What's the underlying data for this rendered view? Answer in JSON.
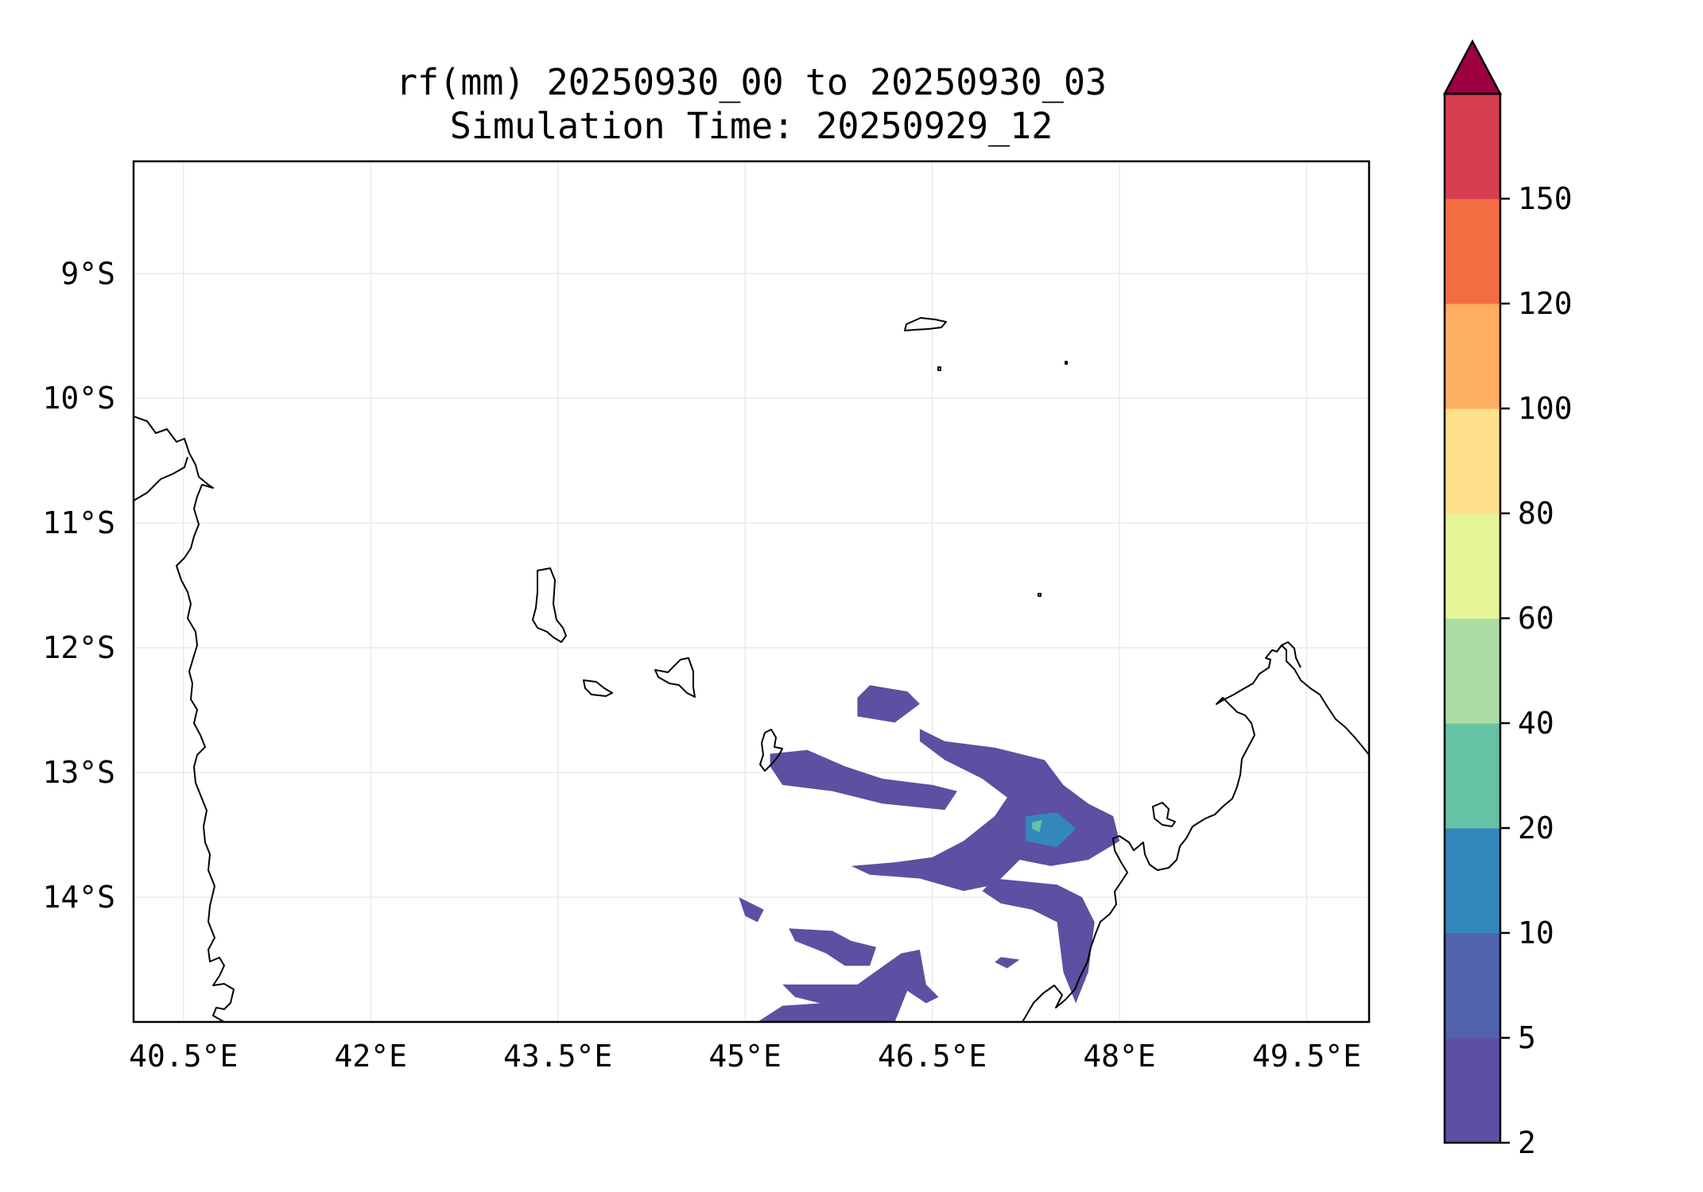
{
  "title": {
    "line1": "rf(mm) 20250930_00 to 20250930_03",
    "line2": "Simulation Time: 20250929_12"
  },
  "map": {
    "extent": {
      "lon_min": 40.1,
      "lon_max": 50.0,
      "lat_min": -15.0,
      "lat_max": -8.1
    },
    "x_ticks": [
      {
        "lon": 40.5,
        "label": "40.5°E"
      },
      {
        "lon": 42.0,
        "label": "42°E"
      },
      {
        "lon": 43.5,
        "label": "43.5°E"
      },
      {
        "lon": 45.0,
        "label": "45°E"
      },
      {
        "lon": 46.5,
        "label": "46.5°E"
      },
      {
        "lon": 48.0,
        "label": "48°E"
      },
      {
        "lon": 49.5,
        "label": "49.5°E"
      }
    ],
    "y_ticks": [
      {
        "lat": -9,
        "label": "9°S"
      },
      {
        "lat": -10,
        "label": "10°S"
      },
      {
        "lat": -11,
        "label": "11°S"
      },
      {
        "lat": -12,
        "label": "12°S"
      },
      {
        "lat": -13,
        "label": "13°S"
      },
      {
        "lat": -14,
        "label": "14°S"
      }
    ],
    "gridlines": true,
    "coastline_color": "#000000",
    "rain_polygons": [
      {
        "color": "#5e4fa2",
        "coords": [
          [
            46.0,
            -12.3
          ],
          [
            46.3,
            -12.35
          ],
          [
            46.4,
            -12.45
          ],
          [
            46.2,
            -12.6
          ],
          [
            45.9,
            -12.55
          ],
          [
            45.9,
            -12.4
          ]
        ]
      },
      {
        "color": "#5e4fa2",
        "coords": [
          [
            46.4,
            -12.65
          ],
          [
            46.6,
            -12.75
          ],
          [
            47.0,
            -12.8
          ],
          [
            47.4,
            -12.9
          ],
          [
            47.55,
            -13.1
          ],
          [
            47.75,
            -13.25
          ],
          [
            47.95,
            -13.35
          ],
          [
            48.0,
            -13.55
          ],
          [
            47.75,
            -13.7
          ],
          [
            47.45,
            -13.75
          ],
          [
            47.2,
            -13.7
          ],
          [
            47.0,
            -13.9
          ],
          [
            46.75,
            -13.95
          ],
          [
            46.4,
            -13.85
          ],
          [
            46.0,
            -13.82
          ],
          [
            45.85,
            -13.75
          ],
          [
            46.2,
            -13.72
          ],
          [
            46.5,
            -13.68
          ],
          [
            46.75,
            -13.55
          ],
          [
            47.0,
            -13.35
          ],
          [
            47.1,
            -13.2
          ],
          [
            46.9,
            -13.05
          ],
          [
            46.6,
            -12.9
          ],
          [
            46.4,
            -12.75
          ]
        ]
      },
      {
        "color": "#5e4fa2",
        "coords": [
          [
            45.2,
            -12.85
          ],
          [
            45.5,
            -12.82
          ],
          [
            45.8,
            -12.95
          ],
          [
            46.1,
            -13.05
          ],
          [
            46.5,
            -13.1
          ],
          [
            46.7,
            -13.15
          ],
          [
            46.6,
            -13.3
          ],
          [
            46.1,
            -13.25
          ],
          [
            45.7,
            -13.15
          ],
          [
            45.3,
            -13.1
          ],
          [
            45.2,
            -12.95
          ]
        ]
      },
      {
        "color": "#5e4fa2",
        "coords": [
          [
            47.0,
            -13.85
          ],
          [
            47.5,
            -13.9
          ],
          [
            47.7,
            -14.0
          ],
          [
            47.8,
            -14.2
          ],
          [
            47.75,
            -14.6
          ],
          [
            47.65,
            -14.85
          ],
          [
            47.55,
            -14.6
          ],
          [
            47.5,
            -14.2
          ],
          [
            47.3,
            -14.1
          ],
          [
            47.05,
            -14.05
          ],
          [
            46.9,
            -13.95
          ]
        ]
      },
      {
        "color": "#5e4fa2",
        "coords": [
          [
            44.95,
            -14.0
          ],
          [
            45.15,
            -14.1
          ],
          [
            45.1,
            -14.2
          ],
          [
            45.0,
            -14.15
          ]
        ]
      },
      {
        "color": "#5e4fa2",
        "coords": [
          [
            45.35,
            -14.25
          ],
          [
            45.7,
            -14.27
          ],
          [
            45.85,
            -14.35
          ],
          [
            46.05,
            -14.4
          ],
          [
            46.0,
            -14.55
          ],
          [
            45.8,
            -14.55
          ],
          [
            45.65,
            -14.45
          ],
          [
            45.4,
            -14.35
          ]
        ]
      },
      {
        "color": "#5e4fa2",
        "coords": [
          [
            45.3,
            -14.7
          ],
          [
            45.6,
            -14.7
          ],
          [
            45.9,
            -14.7
          ],
          [
            46.25,
            -14.45
          ],
          [
            46.4,
            -14.42
          ],
          [
            46.45,
            -14.7
          ],
          [
            46.55,
            -14.8
          ],
          [
            46.45,
            -14.85
          ],
          [
            46.3,
            -14.75
          ],
          [
            46.2,
            -15.0
          ],
          [
            45.1,
            -15.0
          ],
          [
            45.3,
            -14.87
          ],
          [
            45.6,
            -14.85
          ],
          [
            45.4,
            -14.8
          ]
        ]
      },
      {
        "color": "#5e4fa2",
        "coords": [
          [
            47.05,
            -14.48
          ],
          [
            47.2,
            -14.5
          ],
          [
            47.1,
            -14.57
          ],
          [
            47.0,
            -14.52
          ]
        ]
      },
      {
        "color": "#3288bd",
        "coords": [
          [
            47.25,
            -13.35
          ],
          [
            47.5,
            -13.32
          ],
          [
            47.65,
            -13.45
          ],
          [
            47.5,
            -13.6
          ],
          [
            47.25,
            -13.55
          ]
        ]
      },
      {
        "color": "#66c2a5",
        "coords": [
          [
            47.3,
            -13.4
          ],
          [
            47.38,
            -13.38
          ],
          [
            47.36,
            -13.48
          ],
          [
            47.3,
            -13.45
          ]
        ]
      }
    ]
  },
  "colorbar": {
    "levels": [
      2,
      5,
      10,
      20,
      40,
      60,
      80,
      100,
      120,
      150
    ],
    "tick_labels": [
      "2",
      "5",
      "10",
      "20",
      "40",
      "60",
      "80",
      "100",
      "120",
      "150"
    ],
    "colors": [
      "#5e4fa2",
      "#4f62ab",
      "#3288bd",
      "#66c2a5",
      "#abdda4",
      "#e6f598",
      "#fee08b",
      "#fdae61",
      "#f46d43",
      "#d53e4f"
    ],
    "extend_color": "#9e0142",
    "extend": "max"
  }
}
